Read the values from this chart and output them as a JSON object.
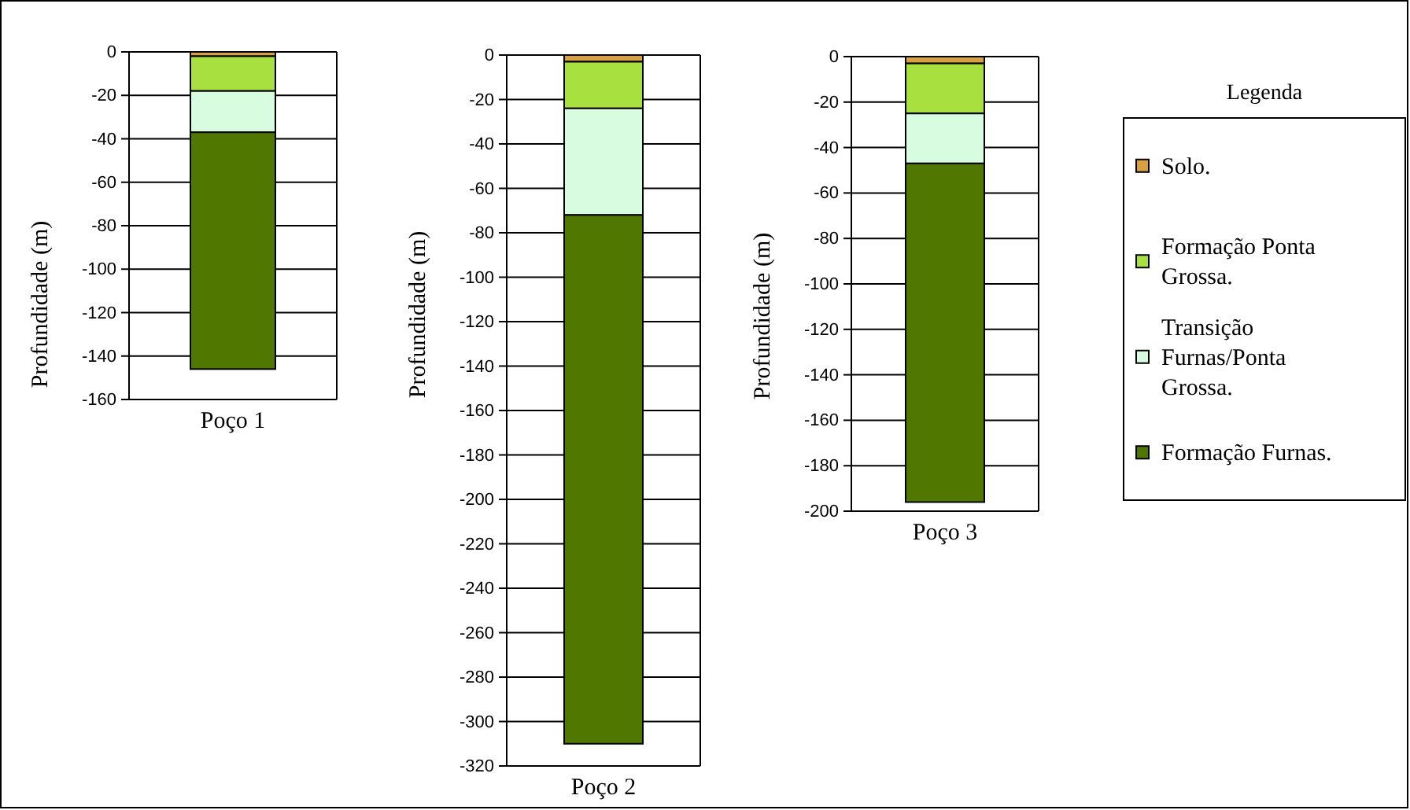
{
  "chart_data": [
    {
      "type": "bar",
      "stacked": true,
      "categories": [
        "Poço 1"
      ],
      "ylabel": "Profundidade (m)",
      "ylim": [
        -160,
        0
      ],
      "yticks": [
        0,
        -20,
        -40,
        -60,
        -80,
        -100,
        -120,
        -140,
        -160
      ],
      "grid": "y",
      "legend": false,
      "series": [
        {
          "color": "#d8a040",
          "values": [
            -2
          ]
        },
        {
          "color": "#a8e040",
          "values": [
            -16
          ]
        },
        {
          "color": "#d8fce0",
          "values": [
            -19
          ]
        },
        {
          "color": "#507800",
          "values": [
            -109
          ]
        }
      ]
    },
    {
      "type": "bar",
      "stacked": true,
      "categories": [
        "Poço 2"
      ],
      "ylabel": "Profundidade (m)",
      "ylim": [
        -320,
        0
      ],
      "yticks": [
        0,
        -20,
        -40,
        -60,
        -80,
        -100,
        -120,
        -140,
        -160,
        -180,
        -200,
        -220,
        -240,
        -260,
        -280,
        -300,
        -320
      ],
      "grid": "y",
      "legend": false,
      "series": [
        {
          "color": "#d8a040",
          "values": [
            -3
          ]
        },
        {
          "color": "#a8e040",
          "values": [
            -21
          ]
        },
        {
          "color": "#d8fce0",
          "values": [
            -48
          ]
        },
        {
          "color": "#507800",
          "values": [
            -238
          ]
        }
      ]
    },
    {
      "type": "bar",
      "stacked": true,
      "categories": [
        "Poço 3"
      ],
      "ylabel": "Profundidade (m)",
      "ylim": [
        -200,
        0
      ],
      "yticks": [
        0,
        -20,
        -40,
        -60,
        -80,
        -100,
        -120,
        -140,
        -160,
        -180,
        -200
      ],
      "grid": "y",
      "legend": "right",
      "legend_title": "Legenda",
      "series": [
        {
          "name": "Solo.",
          "color": "#d8a040",
          "values": [
            -3
          ]
        },
        {
          "name": "Formação Ponta Grossa.",
          "color": "#a8e040",
          "values": [
            -22
          ]
        },
        {
          "name": "Transição Furnas/Ponta Grossa.",
          "color": "#d8fce0",
          "values": [
            -22
          ]
        },
        {
          "name": "Formação Furnas.",
          "color": "#507800",
          "values": [
            -149
          ]
        }
      ]
    }
  ]
}
